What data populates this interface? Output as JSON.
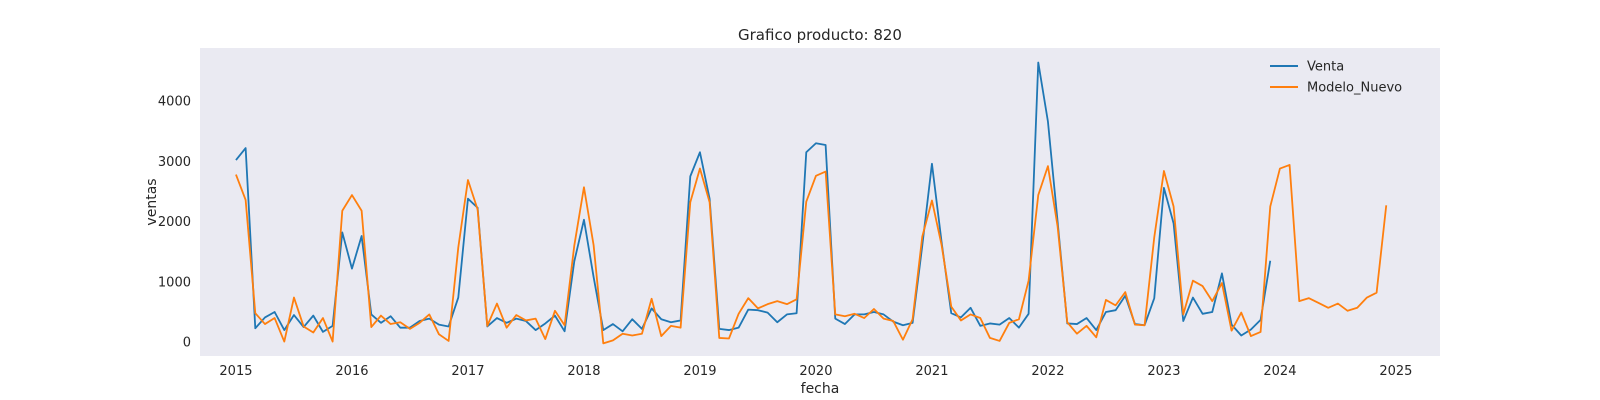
{
  "chart_data": {
    "type": "line",
    "title": "Grafico producto: 820",
    "xlabel": "fecha",
    "ylabel": "ventas",
    "xlim": [
      2014.69,
      2025.38
    ],
    "ylim": [
      -230,
      4880
    ],
    "x_ticks": [
      2015,
      2016,
      2017,
      2018,
      2019,
      2020,
      2021,
      2022,
      2023,
      2024,
      2025
    ],
    "x_tick_labels": [
      "2015",
      "2016",
      "2017",
      "2018",
      "2019",
      "2020",
      "2021",
      "2022",
      "2023",
      "2024",
      "2025"
    ],
    "y_ticks": [
      0,
      1000,
      2000,
      3000,
      4000
    ],
    "y_tick_labels": [
      "0",
      "1000",
      "2000",
      "3000",
      "4000"
    ],
    "grid": false,
    "legend_position": "top-right",
    "background": "#EAEAF2",
    "x_start": 2015,
    "x_step": 0.0833333,
    "series": [
      {
        "name": "Venta",
        "color": "#1F77B4",
        "values": [
          3020,
          3220,
          230,
          410,
          500,
          200,
          450,
          250,
          440,
          170,
          270,
          1820,
          1220,
          1760,
          460,
          320,
          430,
          240,
          240,
          350,
          390,
          290,
          260,
          740,
          2380,
          2230,
          260,
          400,
          320,
          390,
          350,
          200,
          310,
          440,
          180,
          1340,
          2030,
          1080,
          200,
          300,
          180,
          380,
          220,
          560,
          380,
          330,
          360,
          2750,
          3150,
          2380,
          220,
          200,
          240,
          540,
          530,
          490,
          330,
          460,
          480,
          3150,
          3300,
          3270,
          390,
          300,
          460,
          460,
          500,
          460,
          340,
          280,
          320,
          1600,
          2960,
          1660,
          480,
          410,
          570,
          270,
          310,
          290,
          400,
          240,
          470,
          4640,
          3660,
          2000,
          310,
          300,
          400,
          200,
          500,
          530,
          770,
          300,
          280,
          730,
          2560,
          1970,
          350,
          740,
          470,
          500,
          1140,
          290,
          110,
          210,
          370,
          1350
        ],
        "x_start": 2015
      },
      {
        "name": "Modelo_Nuevo",
        "color": "#FF7F0E",
        "values": [
          2780,
          2360,
          480,
          300,
          400,
          10,
          740,
          260,
          160,
          400,
          10,
          2180,
          2440,
          2180,
          250,
          440,
          300,
          330,
          220,
          320,
          460,
          130,
          20,
          1570,
          2690,
          2200,
          270,
          640,
          240,
          450,
          360,
          390,
          50,
          520,
          280,
          1600,
          2570,
          1610,
          -20,
          30,
          140,
          110,
          140,
          720,
          100,
          270,
          240,
          2320,
          2880,
          2320,
          70,
          60,
          470,
          730,
          560,
          630,
          680,
          630,
          710,
          2330,
          2760,
          2830,
          460,
          430,
          470,
          400,
          550,
          390,
          350,
          40,
          380,
          1750,
          2350,
          1610,
          590,
          360,
          460,
          400,
          70,
          20,
          320,
          380,
          1020,
          2440,
          2920,
          1920,
          330,
          140,
          270,
          80,
          700,
          610,
          830,
          290,
          280,
          1740,
          2840,
          2250,
          460,
          1020,
          930,
          680,
          980,
          190,
          490,
          100,
          170,
          2250,
          2880,
          2940,
          680,
          730,
          650,
          570,
          640,
          520,
          570,
          740,
          820,
          2270
        ],
        "x_start": 2015
      }
    ]
  }
}
